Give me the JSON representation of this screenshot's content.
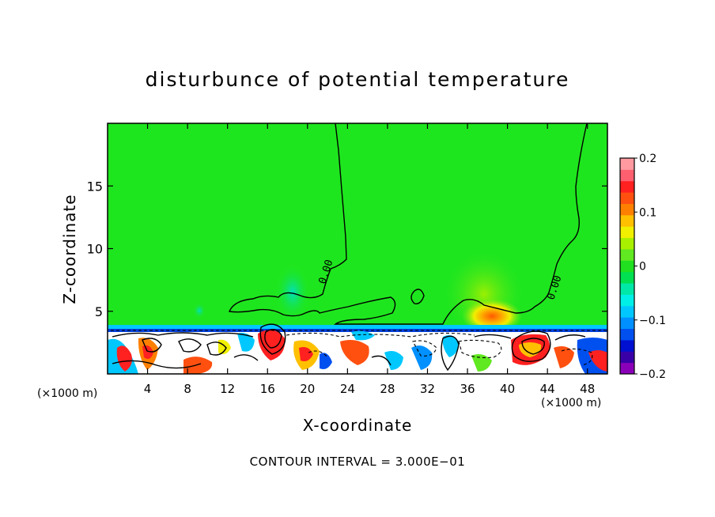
{
  "chart_data": {
    "type": "heatmap",
    "title": "disturbunce of potential temperature",
    "xlabel": "X-coordinate",
    "ylabel": "Z-coordinate",
    "x_unit_left": "(×1000 m)",
    "x_unit_right": "(×1000 m)",
    "xlim": [
      0,
      50
    ],
    "ylim": [
      0,
      20
    ],
    "x_ticks": [
      4,
      8,
      12,
      16,
      20,
      24,
      28,
      32,
      36,
      40,
      44,
      48
    ],
    "y_ticks": [
      5,
      10,
      15
    ],
    "colorbar": {
      "range": [
        -0.2,
        0.2
      ],
      "tick_labels": [
        {
          "value": 0.2,
          "label": "0.2"
        },
        {
          "value": 0.1,
          "label": "0.1"
        },
        {
          "value": 0.0,
          "label": "0"
        },
        {
          "value": -0.1,
          "label": "−0.1"
        },
        {
          "value": -0.2,
          "label": "−0.2"
        }
      ],
      "colors": [
        "#8a00b8",
        "#3a00a8",
        "#0010d0",
        "#0050f0",
        "#0090ff",
        "#00c8ff",
        "#00f0e8",
        "#00e8a8",
        "#00e050",
        "#20e020",
        "#60e820",
        "#a8f000",
        "#f0f000",
        "#ffc000",
        "#ff8000",
        "#ff5010",
        "#ff2020",
        "#ff6070",
        "#ff9aa0"
      ]
    },
    "contour_labels": [
      "0.00",
      "0.00"
    ],
    "contour_interval_text": "CONTOUR INTERVAL = 3.000E−01",
    "background_color": "#1ee61e"
  }
}
